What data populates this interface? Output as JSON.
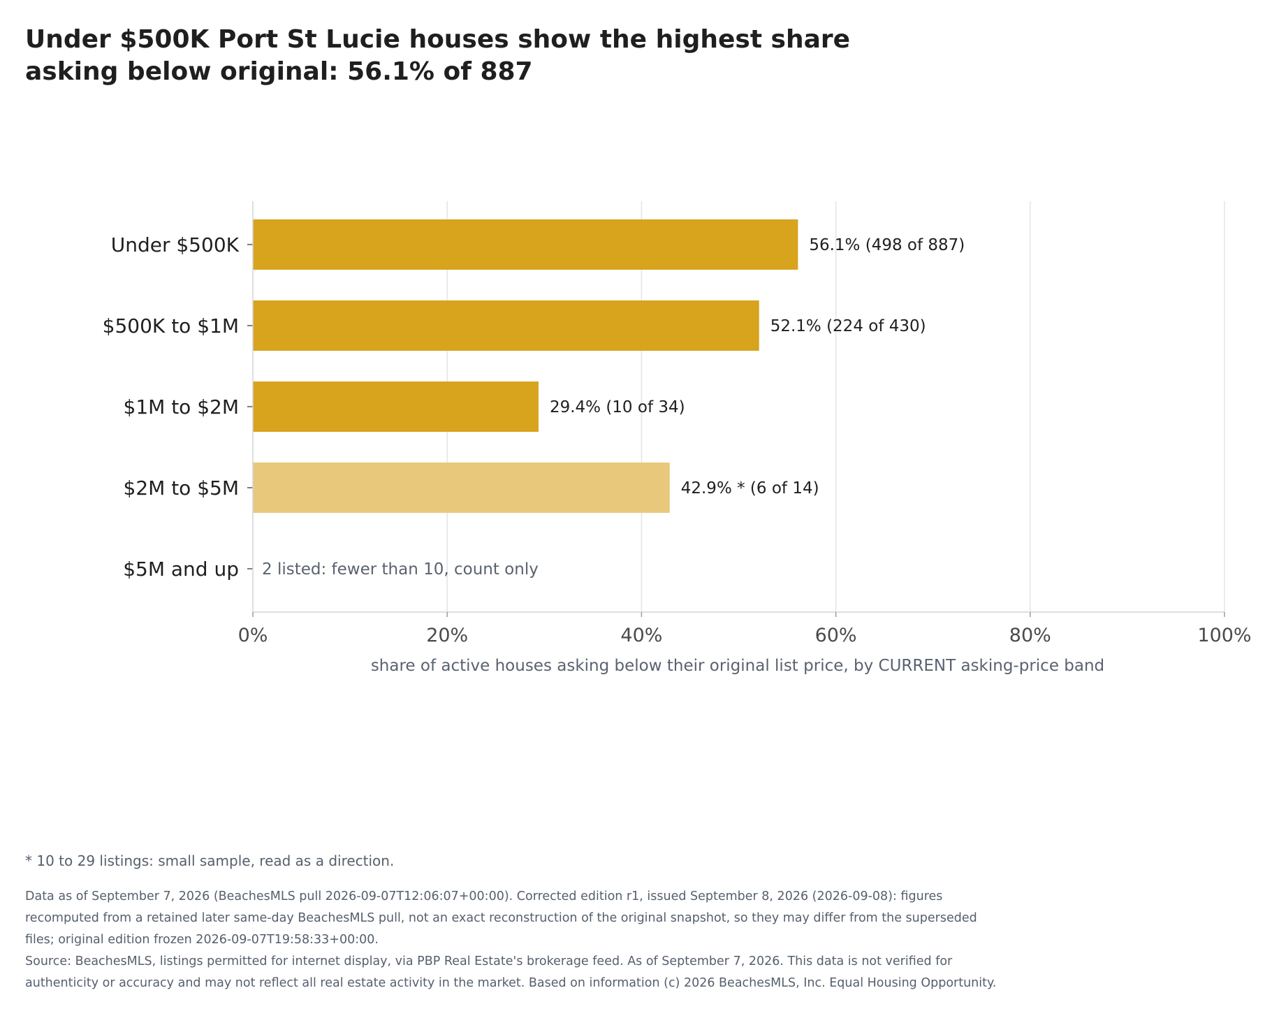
{
  "title": "Under $500K Port St Lucie houses show the highest share asking below original: 56.1% of 887",
  "chart_data": {
    "type": "bar",
    "orientation": "horizontal",
    "categories": [
      "Under $500K",
      "$500K to $1M",
      "$1M to $2M",
      "$2M to $5M",
      "$5M and up"
    ],
    "values": [
      56.1,
      52.1,
      29.4,
      42.9,
      null
    ],
    "value_labels": [
      "56.1%  (498 of 887)",
      "52.1%  (224 of 430)",
      "29.4%  (10 of 34)",
      "42.9% *  (6 of 14)",
      "2 listed: fewer than 10, count only"
    ],
    "small_sample": [
      false,
      false,
      false,
      true,
      false
    ],
    "xlabel": "share of active houses asking below their original list price, by CURRENT asking-price band",
    "xlim": [
      0,
      100
    ],
    "xticks": [
      0,
      20,
      40,
      60,
      80,
      100
    ],
    "xtick_labels": [
      "0%",
      "20%",
      "40%",
      "60%",
      "80%",
      "100%"
    ],
    "grid": true,
    "colors": {
      "bar": "#d8a31d",
      "bar_small_sample": "#e8c87a",
      "grid": "#e3e3ea",
      "axis": "#d3d3dc",
      "muted_text": "#5a6270"
    }
  },
  "footnote": "* 10 to 29 listings: small sample, read as a direction.",
  "notes": [
    "Data as of September 7, 2026 (BeachesMLS pull 2026-09-07T12:06:07+00:00). Corrected edition r1, issued September 8, 2026 (2026-09-08): figures recomputed from a retained later same-day BeachesMLS pull, not an exact reconstruction of the original snapshot, so they may differ from the superseded files; original edition frozen 2026-09-07T19:58:33+00:00.",
    "Source: BeachesMLS, listings permitted for internet display, via PBP Real Estate's brokerage feed. As of September 7, 2026. This data is not verified for authenticity or accuracy and may not reflect all real estate activity in the market. Based on information (c) 2026 BeachesMLS, Inc. Equal Housing Opportunity."
  ]
}
